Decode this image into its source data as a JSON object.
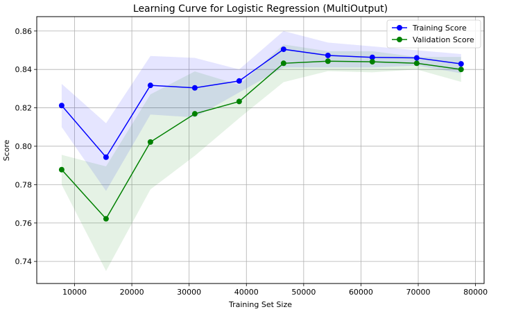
{
  "chart_data": {
    "type": "line",
    "title": "Learning Curve for Logistic Regression (MultiOutput)",
    "xlabel": "Training Set Size",
    "ylabel": "Score",
    "xlim": [
      3400,
      81500
    ],
    "ylim": [
      0.7285,
      0.8675
    ],
    "xticks": [
      10000,
      20000,
      30000,
      40000,
      50000,
      60000,
      70000,
      80000
    ],
    "yticks": [
      0.74,
      0.76,
      0.78,
      0.8,
      0.82,
      0.84,
      0.86
    ],
    "grid": true,
    "legend_position": "top-right",
    "x": [
      7748,
      15496,
      23244,
      30992,
      38740,
      46488,
      54236,
      61984,
      69732,
      77480
    ],
    "series": [
      {
        "name": "Training Score",
        "color": "#0000ff",
        "band_color": "#0000ff",
        "values": [
          0.8212,
          0.7943,
          0.8317,
          0.8304,
          0.834,
          0.8505,
          0.8473,
          0.8463,
          0.846,
          0.8429
        ],
        "upper": [
          0.8325,
          0.812,
          0.847,
          0.846,
          0.84,
          0.86,
          0.854,
          0.852,
          0.85,
          0.848
        ],
        "lower": [
          0.81,
          0.7767,
          0.8165,
          0.815,
          0.828,
          0.841,
          0.841,
          0.841,
          0.842,
          0.838
        ]
      },
      {
        "name": "Validation Score",
        "color": "#008000",
        "band_color": "#008000",
        "values": [
          0.7878,
          0.7622,
          0.8022,
          0.8169,
          0.8233,
          0.8432,
          0.8443,
          0.844,
          0.8432,
          0.84
        ],
        "upper": [
          0.7955,
          0.7895,
          0.827,
          0.839,
          0.832,
          0.853,
          0.8495,
          0.8495,
          0.8465,
          0.8465
        ],
        "lower": [
          0.78,
          0.735,
          0.7775,
          0.795,
          0.8146,
          0.8334,
          0.8391,
          0.8385,
          0.84,
          0.8335
        ]
      }
    ]
  }
}
